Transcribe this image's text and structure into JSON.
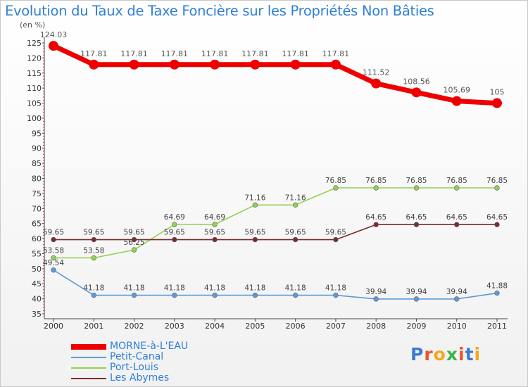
{
  "chart_data": {
    "type": "line",
    "title": "Evolution du Taux de Taxe Foncière sur les Propriétés Non Bâties",
    "ylabel": "(en %)",
    "x": [
      "2000",
      "2001",
      "2002",
      "2003",
      "2004",
      "2005",
      "2006",
      "2007",
      "2008",
      "2009",
      "2010",
      "2011"
    ],
    "ylim": [
      35,
      125
    ],
    "yticks": [
      35,
      40,
      45,
      50,
      55,
      60,
      65,
      70,
      75,
      80,
      85,
      90,
      95,
      100,
      105,
      110,
      115,
      120,
      125
    ],
    "grid": false,
    "legend_position": "bottom-left",
    "series": [
      {
        "name": "MORNE-à-L'EAU",
        "color": "#ee0000",
        "values": [
          124.03,
          117.81,
          117.81,
          117.81,
          117.81,
          117.81,
          117.81,
          117.81,
          111.52,
          108.56,
          105.69,
          105
        ],
        "labels": [
          "124.03",
          "117.81",
          "117.81",
          "117.81",
          "117.81",
          "117.81",
          "117.81",
          "117.81",
          "111.52",
          "108.56",
          "105.69",
          "105"
        ]
      },
      {
        "name": "Petit-Canal",
        "color": "#5b9bd5",
        "values": [
          49.54,
          41.18,
          41.18,
          41.18,
          41.18,
          41.18,
          41.18,
          41.18,
          39.94,
          39.94,
          39.94,
          41.88
        ],
        "labels": [
          "49.54",
          "41.18",
          "41.18",
          "41.18",
          "41.18",
          "41.18",
          "41.18",
          "41.18",
          "39.94",
          "39.94",
          "39.94",
          "41.88"
        ]
      },
      {
        "name": "Port-Louis",
        "color": "#92d050",
        "values": [
          53.58,
          53.58,
          56.25,
          64.69,
          64.69,
          71.16,
          71.16,
          76.85,
          76.85,
          76.85,
          76.85,
          76.85
        ],
        "labels": [
          "53.58",
          "53.58",
          "56.25",
          "64.69",
          "64.69",
          "71.16",
          "71.16",
          "76.85",
          "76.85",
          "76.85",
          "76.85",
          "76.85"
        ]
      },
      {
        "name": "Les Abymes",
        "color": "#7b2c2c",
        "values": [
          59.65,
          59.65,
          59.65,
          59.65,
          59.65,
          59.65,
          59.65,
          59.65,
          64.65,
          64.65,
          64.65,
          64.65
        ],
        "labels": [
          "59.65",
          "59.65",
          "59.65",
          "59.65",
          "59.65",
          "59.65",
          "59.65",
          "59.65",
          "64.65",
          "64.65",
          "64.65",
          "64.65"
        ]
      }
    ]
  },
  "logo": {
    "text": "Proxiti",
    "colors": [
      "#3a7bd5",
      "#e8552a",
      "#f2a81d",
      "#3bb54a",
      "#e8552a",
      "#3a7bd5",
      "#f2a81d"
    ]
  }
}
